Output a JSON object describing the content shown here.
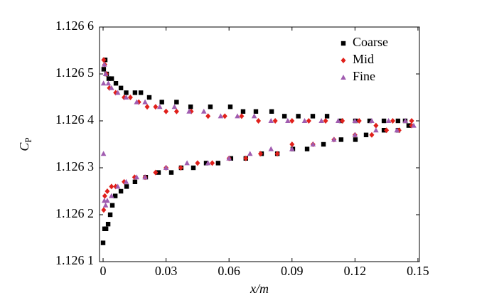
{
  "chart_data": {
    "type": "scatter",
    "xlabel": "x/m",
    "ylabel": "C",
    "ylabel_sub": "P",
    "xlim": [
      -0.0017,
      0.1507
    ],
    "ylim": [
      1.1261,
      1.1266
    ],
    "xticks": [
      0,
      0.03,
      0.06,
      0.09,
      0.12,
      0.15
    ],
    "yticks": [
      {
        "value": 1.1261,
        "label": "1.126 1"
      },
      {
        "value": 1.1262,
        "label": "1.126 2"
      },
      {
        "value": 1.1263,
        "label": "1.126 3"
      },
      {
        "value": 1.1264,
        "label": "1.126 4"
      },
      {
        "value": 1.1265,
        "label": "1.126 5"
      },
      {
        "value": 1.1266,
        "label": "1.126 6"
      }
    ],
    "legend": "upper right",
    "series": [
      {
        "name": "Coarse",
        "color": "#000000",
        "marker": "square",
        "x": [
          0.0003,
          0.001,
          0.0017,
          0.0027,
          0.0041,
          0.0061,
          0.0085,
          0.011,
          0.0152,
          0.018,
          0.022,
          0.028,
          0.035,
          0.0417,
          0.0511,
          0.0606,
          0.0667,
          0.0728,
          0.0803,
          0.0864,
          0.093,
          0.0999,
          0.1067,
          0.1134,
          0.1202,
          0.127,
          0.1338,
          0.1405,
          0.1439,
          0.0,
          0.0007,
          0.0014,
          0.0024,
          0.0034,
          0.0044,
          0.0058,
          0.0085,
          0.0112,
          0.0152,
          0.0203,
          0.0264,
          0.0325,
          0.0372,
          0.043,
          0.0491,
          0.0548,
          0.0609,
          0.068,
          0.0755,
          0.083,
          0.0904,
          0.0972,
          0.105,
          0.1134,
          0.1202,
          0.1253,
          0.1338,
          0.1405,
          0.1456
        ],
        "values": [
          1.12651,
          1.12653,
          1.1265,
          1.12649,
          1.12649,
          1.12648,
          1.12647,
          1.12646,
          1.12646,
          1.12646,
          1.12645,
          1.12644,
          1.12644,
          1.12643,
          1.12643,
          1.12643,
          1.12642,
          1.12642,
          1.12642,
          1.12641,
          1.12641,
          1.12641,
          1.12641,
          1.1264,
          1.1264,
          1.1264,
          1.1264,
          1.1264,
          1.1264,
          1.12614,
          1.12617,
          1.12617,
          1.12618,
          1.1262,
          1.12622,
          1.12624,
          1.12625,
          1.12626,
          1.12627,
          1.12628,
          1.12629,
          1.12629,
          1.1263,
          1.1263,
          1.12631,
          1.12631,
          1.12632,
          1.12632,
          1.12633,
          1.12633,
          1.12634,
          1.12634,
          1.12635,
          1.12636,
          1.12636,
          1.12637,
          1.12638,
          1.12638,
          1.12639
        ]
      },
      {
        "name": "Mid",
        "color": "#e0201b",
        "marker": "diamond",
        "x": [
          0.0003,
          0.0008,
          0.0015,
          0.003,
          0.006,
          0.01,
          0.013,
          0.017,
          0.021,
          0.025,
          0.03,
          0.035,
          0.042,
          0.05,
          0.058,
          0.066,
          0.074,
          0.082,
          0.09,
          0.098,
          0.106,
          0.114,
          0.122,
          0.13,
          0.138,
          0.147,
          0.0003,
          0.0008,
          0.002,
          0.004,
          0.006,
          0.01,
          0.015,
          0.02,
          0.025,
          0.03,
          0.037,
          0.045,
          0.052,
          0.06,
          0.068,
          0.075,
          0.083,
          0.09,
          0.1,
          0.11,
          0.12,
          0.128,
          0.135,
          0.141,
          0.147
        ],
        "values": [
          1.12653,
          1.12652,
          1.1265,
          1.12647,
          1.12646,
          1.12645,
          1.12645,
          1.12644,
          1.12643,
          1.12643,
          1.12642,
          1.12642,
          1.12642,
          1.12641,
          1.12641,
          1.12641,
          1.1264,
          1.1264,
          1.1264,
          1.1264,
          1.1264,
          1.1264,
          1.1264,
          1.12639,
          1.1264,
          1.1264,
          1.12621,
          1.12624,
          1.12625,
          1.12626,
          1.12626,
          1.12627,
          1.12628,
          1.12628,
          1.12629,
          1.1263,
          1.1263,
          1.12631,
          1.12631,
          1.12632,
          1.12632,
          1.12633,
          1.12633,
          1.12635,
          1.12635,
          1.12636,
          1.12637,
          1.12637,
          1.12638,
          1.12638,
          1.12639
        ]
      },
      {
        "name": "Fine",
        "color": "#a05cb0",
        "marker": "triangle",
        "x": [
          0.0002,
          0.0006,
          0.0012,
          0.0025,
          0.004,
          0.007,
          0.011,
          0.016,
          0.02,
          0.027,
          0.034,
          0.041,
          0.048,
          0.056,
          0.064,
          0.072,
          0.08,
          0.088,
          0.096,
          0.104,
          0.112,
          0.12,
          0.128,
          0.136,
          0.144,
          0.0002,
          0.0006,
          0.0012,
          0.002,
          0.004,
          0.007,
          0.011,
          0.016,
          0.02,
          0.03,
          0.04,
          0.05,
          0.06,
          0.07,
          0.08,
          0.09,
          0.1,
          0.11,
          0.12,
          0.13,
          0.14,
          0.148
        ],
        "values": [
          1.12648,
          1.12652,
          1.1265,
          1.12648,
          1.12647,
          1.12646,
          1.12645,
          1.12644,
          1.12644,
          1.12643,
          1.12643,
          1.12642,
          1.12642,
          1.12641,
          1.12641,
          1.12641,
          1.1264,
          1.1264,
          1.1264,
          1.1264,
          1.1264,
          1.1264,
          1.1264,
          1.1264,
          1.1264,
          1.12633,
          1.12623,
          1.12622,
          1.12623,
          1.12624,
          1.12626,
          1.12627,
          1.12628,
          1.12628,
          1.1263,
          1.12631,
          1.12631,
          1.12632,
          1.12633,
          1.12634,
          1.12634,
          1.12635,
          1.12636,
          1.12637,
          1.12638,
          1.12638,
          1.12639
        ]
      }
    ]
  }
}
